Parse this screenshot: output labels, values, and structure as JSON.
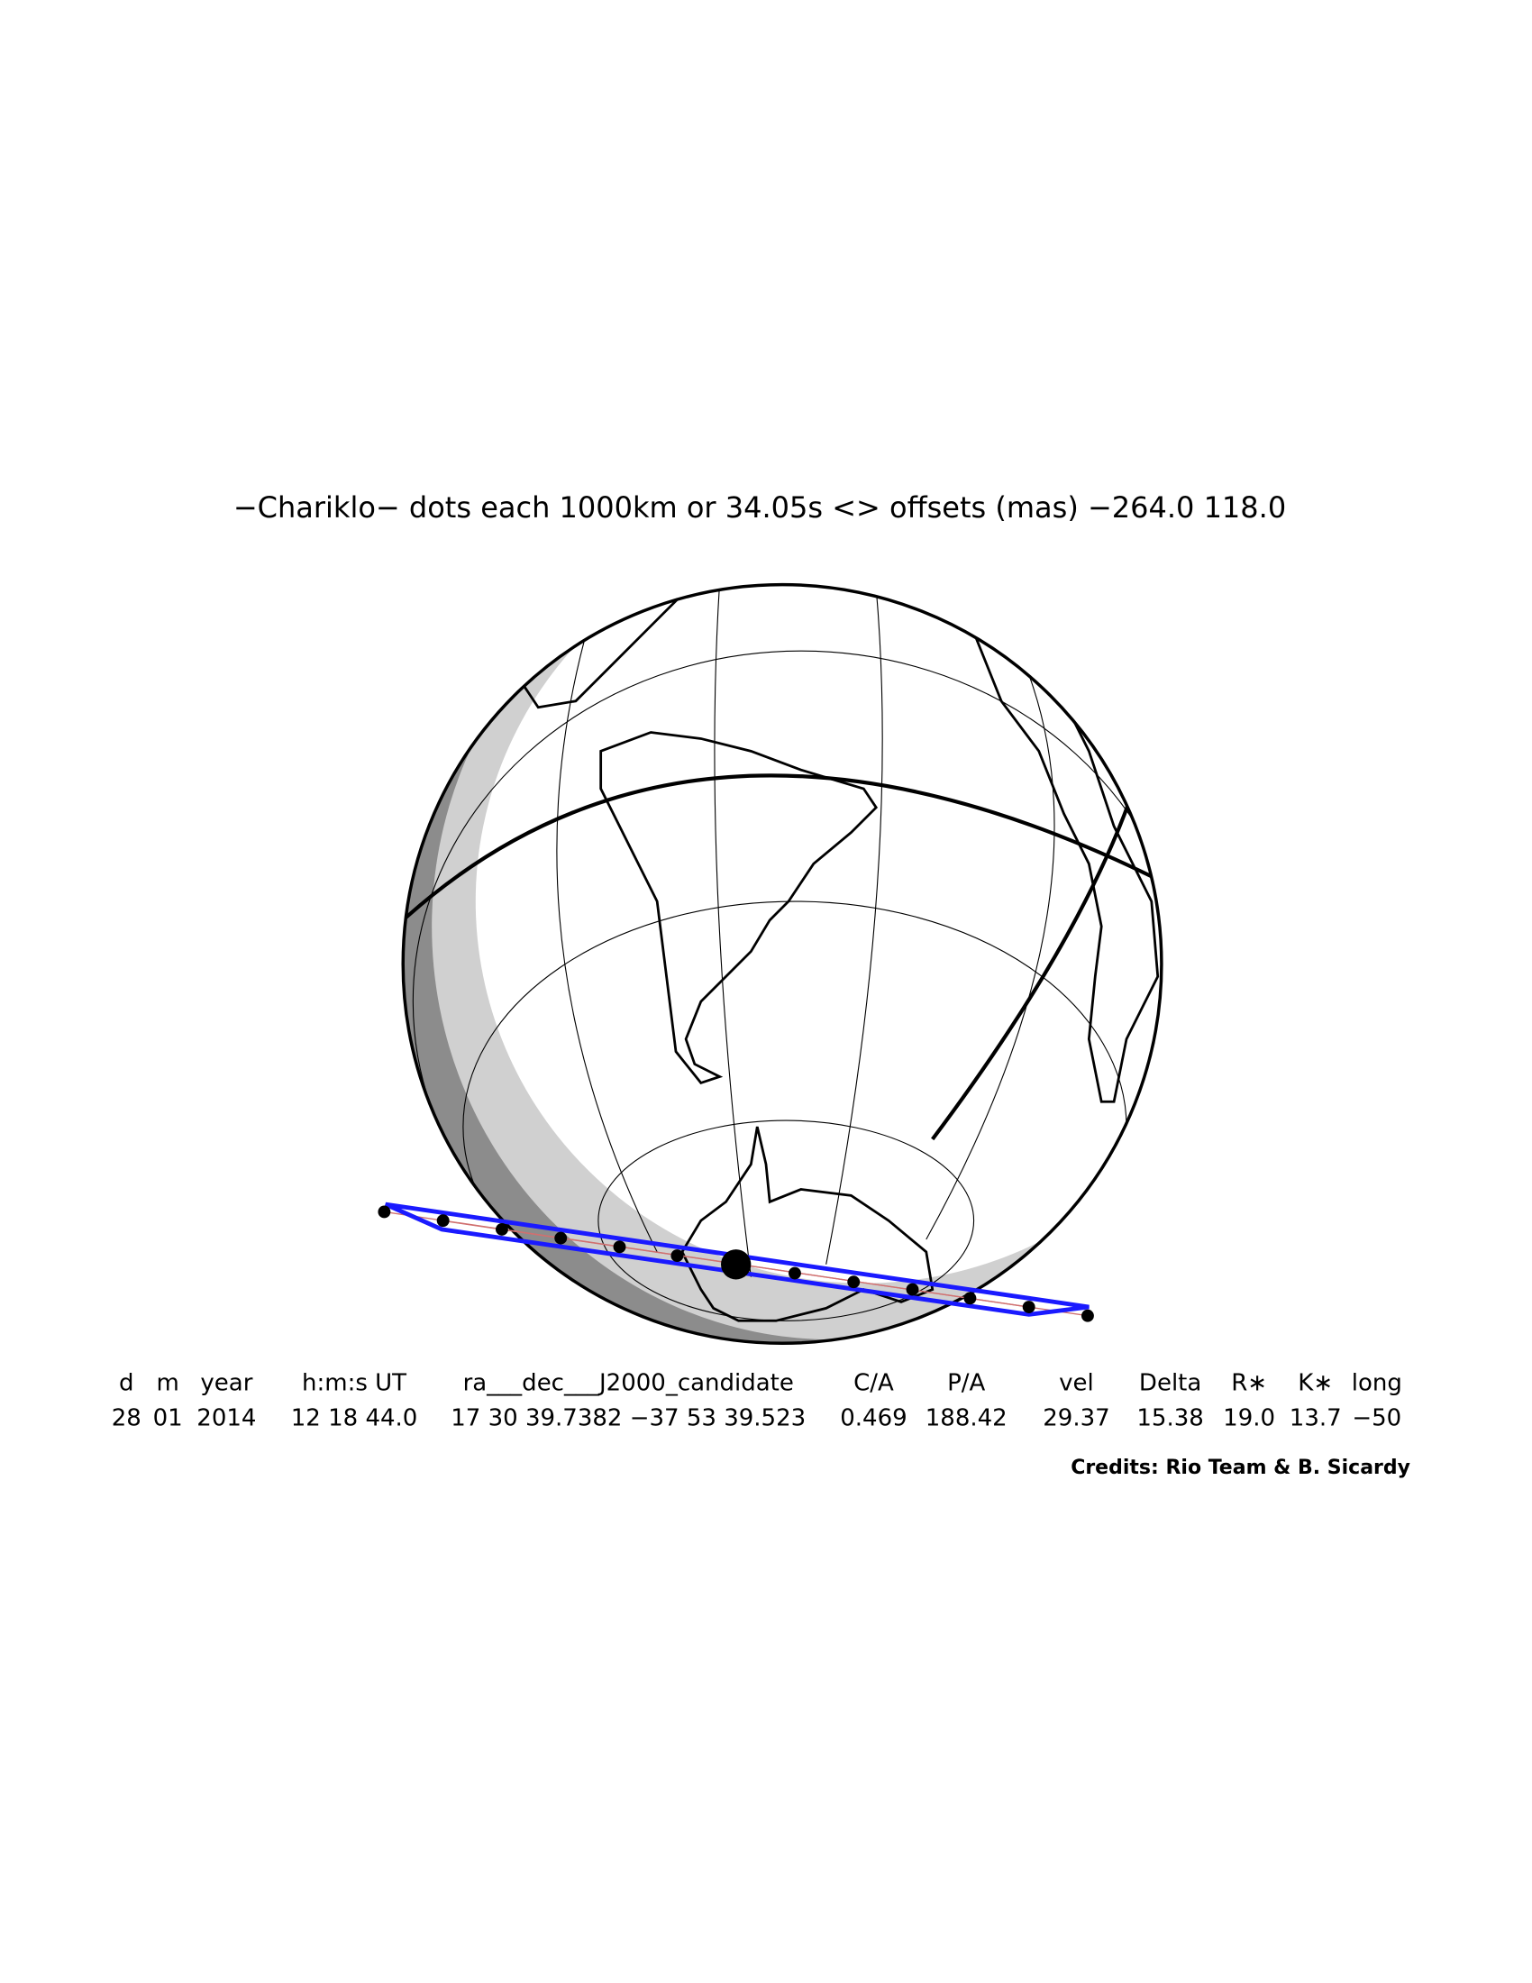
{
  "title": "−Chariklo− dots each 1000km or 34.05s <> offsets (mas) −264.0  118.0",
  "table": {
    "header": [
      "d",
      "m",
      "year",
      "h:m:s UT",
      "ra___dec___J2000_candidate",
      "C/A",
      "P/A",
      "vel",
      "Delta",
      "R∗",
      "K∗",
      "long"
    ],
    "rows": [
      [
        "28",
        "01",
        "2014",
        "12 18 44.0",
        "17 30 39.7382 −37 53 39.523",
        "0.469",
        "188.42",
        "29.37",
        "15.38",
        "19.0",
        "13.7",
        "−50"
      ]
    ]
  },
  "credits": "Credits: Rio Team & B. Sicardy"
}
